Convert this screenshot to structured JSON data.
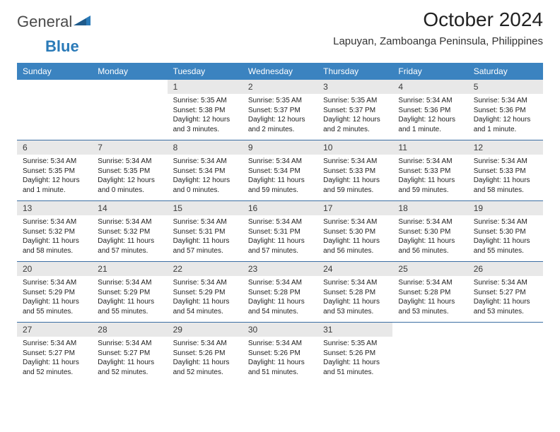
{
  "brand": {
    "part1": "General",
    "part2": "Blue"
  },
  "title": "October 2024",
  "location": "Lapuyan, Zamboanga Peninsula, Philippines",
  "colors": {
    "header_bg": "#3b83c0",
    "header_fg": "#ffffff",
    "daynum_bg": "#e8e8e8",
    "week_border": "#3b6ea3",
    "logo_blue": "#2a7ab8"
  },
  "dayNames": [
    "Sunday",
    "Monday",
    "Tuesday",
    "Wednesday",
    "Thursday",
    "Friday",
    "Saturday"
  ],
  "weeks": [
    [
      {
        "empty": true
      },
      {
        "empty": true
      },
      {
        "num": "1",
        "sunrise": "Sunrise: 5:35 AM",
        "sunset": "Sunset: 5:38 PM",
        "daylight": "Daylight: 12 hours and 3 minutes."
      },
      {
        "num": "2",
        "sunrise": "Sunrise: 5:35 AM",
        "sunset": "Sunset: 5:37 PM",
        "daylight": "Daylight: 12 hours and 2 minutes."
      },
      {
        "num": "3",
        "sunrise": "Sunrise: 5:35 AM",
        "sunset": "Sunset: 5:37 PM",
        "daylight": "Daylight: 12 hours and 2 minutes."
      },
      {
        "num": "4",
        "sunrise": "Sunrise: 5:34 AM",
        "sunset": "Sunset: 5:36 PM",
        "daylight": "Daylight: 12 hours and 1 minute."
      },
      {
        "num": "5",
        "sunrise": "Sunrise: 5:34 AM",
        "sunset": "Sunset: 5:36 PM",
        "daylight": "Daylight: 12 hours and 1 minute."
      }
    ],
    [
      {
        "num": "6",
        "sunrise": "Sunrise: 5:34 AM",
        "sunset": "Sunset: 5:35 PM",
        "daylight": "Daylight: 12 hours and 1 minute."
      },
      {
        "num": "7",
        "sunrise": "Sunrise: 5:34 AM",
        "sunset": "Sunset: 5:35 PM",
        "daylight": "Daylight: 12 hours and 0 minutes."
      },
      {
        "num": "8",
        "sunrise": "Sunrise: 5:34 AM",
        "sunset": "Sunset: 5:34 PM",
        "daylight": "Daylight: 12 hours and 0 minutes."
      },
      {
        "num": "9",
        "sunrise": "Sunrise: 5:34 AM",
        "sunset": "Sunset: 5:34 PM",
        "daylight": "Daylight: 11 hours and 59 minutes."
      },
      {
        "num": "10",
        "sunrise": "Sunrise: 5:34 AM",
        "sunset": "Sunset: 5:33 PM",
        "daylight": "Daylight: 11 hours and 59 minutes."
      },
      {
        "num": "11",
        "sunrise": "Sunrise: 5:34 AM",
        "sunset": "Sunset: 5:33 PM",
        "daylight": "Daylight: 11 hours and 59 minutes."
      },
      {
        "num": "12",
        "sunrise": "Sunrise: 5:34 AM",
        "sunset": "Sunset: 5:33 PM",
        "daylight": "Daylight: 11 hours and 58 minutes."
      }
    ],
    [
      {
        "num": "13",
        "sunrise": "Sunrise: 5:34 AM",
        "sunset": "Sunset: 5:32 PM",
        "daylight": "Daylight: 11 hours and 58 minutes."
      },
      {
        "num": "14",
        "sunrise": "Sunrise: 5:34 AM",
        "sunset": "Sunset: 5:32 PM",
        "daylight": "Daylight: 11 hours and 57 minutes."
      },
      {
        "num": "15",
        "sunrise": "Sunrise: 5:34 AM",
        "sunset": "Sunset: 5:31 PM",
        "daylight": "Daylight: 11 hours and 57 minutes."
      },
      {
        "num": "16",
        "sunrise": "Sunrise: 5:34 AM",
        "sunset": "Sunset: 5:31 PM",
        "daylight": "Daylight: 11 hours and 57 minutes."
      },
      {
        "num": "17",
        "sunrise": "Sunrise: 5:34 AM",
        "sunset": "Sunset: 5:30 PM",
        "daylight": "Daylight: 11 hours and 56 minutes."
      },
      {
        "num": "18",
        "sunrise": "Sunrise: 5:34 AM",
        "sunset": "Sunset: 5:30 PM",
        "daylight": "Daylight: 11 hours and 56 minutes."
      },
      {
        "num": "19",
        "sunrise": "Sunrise: 5:34 AM",
        "sunset": "Sunset: 5:30 PM",
        "daylight": "Daylight: 11 hours and 55 minutes."
      }
    ],
    [
      {
        "num": "20",
        "sunrise": "Sunrise: 5:34 AM",
        "sunset": "Sunset: 5:29 PM",
        "daylight": "Daylight: 11 hours and 55 minutes."
      },
      {
        "num": "21",
        "sunrise": "Sunrise: 5:34 AM",
        "sunset": "Sunset: 5:29 PM",
        "daylight": "Daylight: 11 hours and 55 minutes."
      },
      {
        "num": "22",
        "sunrise": "Sunrise: 5:34 AM",
        "sunset": "Sunset: 5:29 PM",
        "daylight": "Daylight: 11 hours and 54 minutes."
      },
      {
        "num": "23",
        "sunrise": "Sunrise: 5:34 AM",
        "sunset": "Sunset: 5:28 PM",
        "daylight": "Daylight: 11 hours and 54 minutes."
      },
      {
        "num": "24",
        "sunrise": "Sunrise: 5:34 AM",
        "sunset": "Sunset: 5:28 PM",
        "daylight": "Daylight: 11 hours and 53 minutes."
      },
      {
        "num": "25",
        "sunrise": "Sunrise: 5:34 AM",
        "sunset": "Sunset: 5:28 PM",
        "daylight": "Daylight: 11 hours and 53 minutes."
      },
      {
        "num": "26",
        "sunrise": "Sunrise: 5:34 AM",
        "sunset": "Sunset: 5:27 PM",
        "daylight": "Daylight: 11 hours and 53 minutes."
      }
    ],
    [
      {
        "num": "27",
        "sunrise": "Sunrise: 5:34 AM",
        "sunset": "Sunset: 5:27 PM",
        "daylight": "Daylight: 11 hours and 52 minutes."
      },
      {
        "num": "28",
        "sunrise": "Sunrise: 5:34 AM",
        "sunset": "Sunset: 5:27 PM",
        "daylight": "Daylight: 11 hours and 52 minutes."
      },
      {
        "num": "29",
        "sunrise": "Sunrise: 5:34 AM",
        "sunset": "Sunset: 5:26 PM",
        "daylight": "Daylight: 11 hours and 52 minutes."
      },
      {
        "num": "30",
        "sunrise": "Sunrise: 5:34 AM",
        "sunset": "Sunset: 5:26 PM",
        "daylight": "Daylight: 11 hours and 51 minutes."
      },
      {
        "num": "31",
        "sunrise": "Sunrise: 5:35 AM",
        "sunset": "Sunset: 5:26 PM",
        "daylight": "Daylight: 11 hours and 51 minutes."
      },
      {
        "empty": true
      },
      {
        "empty": true
      }
    ]
  ]
}
